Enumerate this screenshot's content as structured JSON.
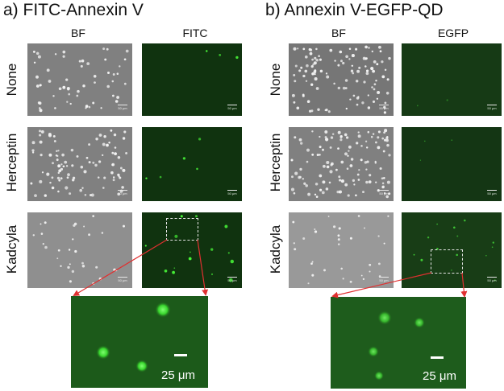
{
  "figure": {
    "panel_a": {
      "title": "a) FITC-Annexin V",
      "columns": [
        "BF",
        "FITC"
      ],
      "rows": [
        "None",
        "Herceptin",
        "Kadcyla"
      ],
      "microscope_scale_label": "50 μm",
      "zoom_scale_label": "25 μm"
    },
    "panel_b": {
      "title": "b) Annexin V-EGFP-QD",
      "columns": [
        "BF",
        "EGFP"
      ],
      "rows": [
        "None",
        "Herceptin",
        "Kadcyla"
      ],
      "microscope_scale_label": "50 μm",
      "zoom_scale_label": "25 μm"
    }
  },
  "colors": {
    "brightfield": "#808080",
    "fluorescence": "#10330f",
    "zoom_background": "#1c5a1a",
    "arrow": "#e03030"
  }
}
